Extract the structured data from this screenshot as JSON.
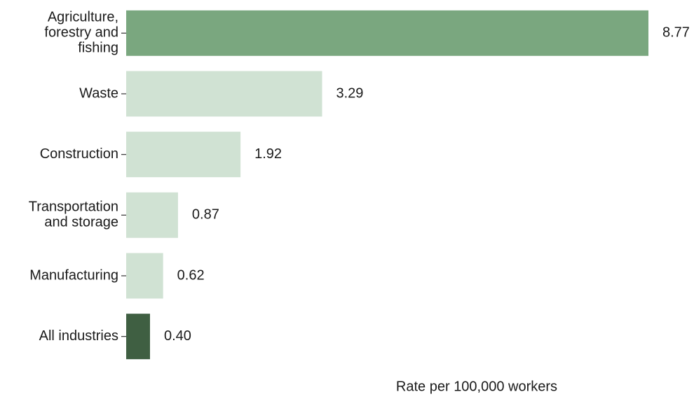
{
  "chart_data": {
    "type": "barh",
    "categories": [
      "Agriculture,\nforestry and\nfishing",
      "Waste",
      "Construction",
      "Transportation\nand storage",
      "Manufacturing",
      "All industries"
    ],
    "values": [
      8.77,
      3.29,
      1.92,
      0.87,
      0.62,
      0.4
    ],
    "value_labels": [
      "8.77",
      "3.29",
      "1.92",
      "0.87",
      "0.62",
      "0.40"
    ],
    "colors": [
      "#7aa77f",
      "#d0e2d3",
      "#d0e2d3",
      "#d0e2d3",
      "#d0e2d3",
      "#3f5f42"
    ],
    "xlabel": "Rate per 100,000 workers",
    "xlim": [
      0,
      9.5
    ]
  }
}
